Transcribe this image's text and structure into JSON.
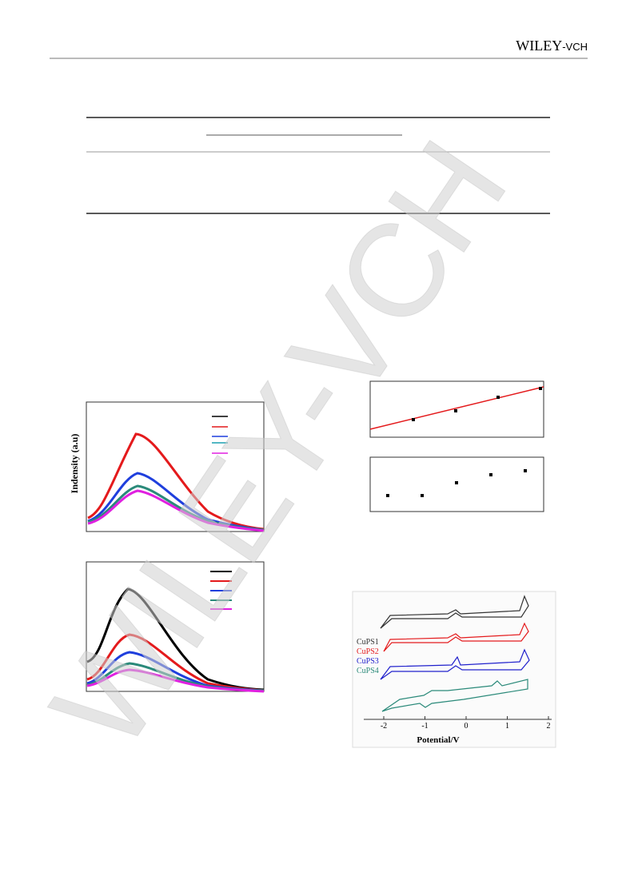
{
  "header": {
    "brand": "WILEY",
    "brand_suffix": "-VCH"
  },
  "figures": {
    "pl": {
      "y_label": "Indensity (a.u)"
    },
    "cv": {
      "legend": [
        "CuPS1",
        "CuPS2",
        "CuPS3",
        "CuPS4"
      ],
      "x_label": "Potential/V",
      "xticks": [
        -2,
        -1,
        0,
        1,
        2
      ]
    }
  },
  "watermark": "WILEY-VCH"
}
